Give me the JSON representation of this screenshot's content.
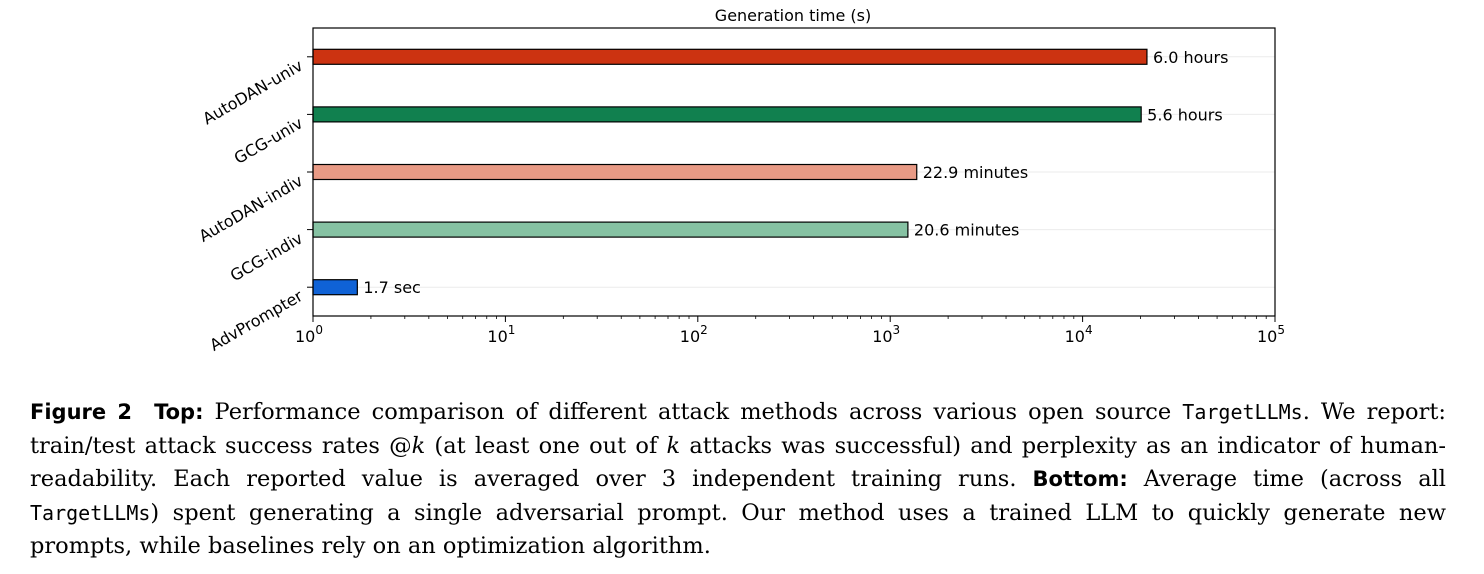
{
  "chart_data": {
    "type": "bar",
    "orientation": "horizontal",
    "title": "Generation time (s)",
    "x_scale": "log",
    "xlim": [
      1,
      100000
    ],
    "x_ticks": [
      {
        "base": "10",
        "exp": "0"
      },
      {
        "base": "10",
        "exp": "1"
      },
      {
        "base": "10",
        "exp": "2"
      },
      {
        "base": "10",
        "exp": "3"
      },
      {
        "base": "10",
        "exp": "4"
      },
      {
        "base": "10",
        "exp": "5"
      }
    ],
    "grid": "horizontal",
    "bars": [
      {
        "category": "AutoDAN-univ",
        "value": 21600,
        "label": "6.0 hours",
        "color": "#cc3311"
      },
      {
        "category": "GCG-univ",
        "value": 20160,
        "label": "5.6 hours",
        "color": "#11804f"
      },
      {
        "category": "AutoDAN-indiv",
        "value": 1374,
        "label": "22.9 minutes",
        "color": "#e89a85"
      },
      {
        "category": "GCG-indiv",
        "value": 1236,
        "label": "20.6 minutes",
        "color": "#86c2a3"
      },
      {
        "category": "AdvPrompter",
        "value": 1.7,
        "label": "1.7 sec",
        "color": "#0f62d6"
      }
    ]
  },
  "caption": {
    "figure_label": "Figure 2",
    "top_label": "Top:",
    "text_1": " Performance comparison of different attack methods across various open source ",
    "code_1": "TargetLLMs",
    "text_2": ". We report: train/test attack success rates @",
    "k1": "k",
    "text_3": " (at least one out of ",
    "k2": "k",
    "text_4": " attacks was successful) and perplexity as an indicator of human-readability. Each reported value is averaged over 3 independent training runs. ",
    "bottom_label": "Bottom:",
    "text_5": " Average time (across all ",
    "code_2": "TargetLLMs",
    "text_6": ") spent generating a single adversarial prompt. Our method uses a trained LLM to quickly generate new prompts, while baselines rely on an optimization algorithm."
  }
}
